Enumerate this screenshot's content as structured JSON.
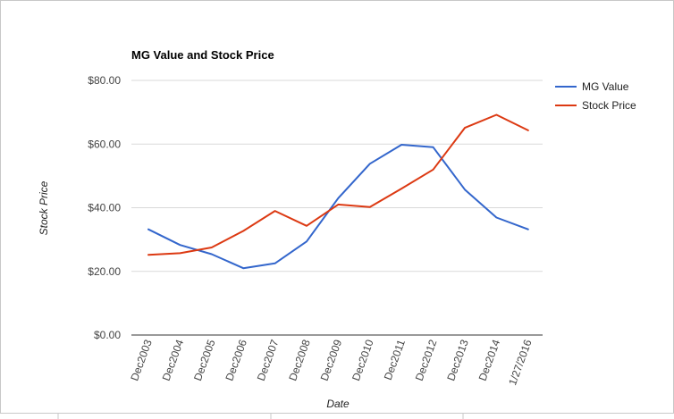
{
  "chart_data": {
    "type": "line",
    "title": "MG Value and Stock Price",
    "xlabel": "Date",
    "ylabel": "Stock Price",
    "categories": [
      "Dec2003",
      "Dec2004",
      "Dec2005",
      "Dec2006",
      "Dec2007",
      "Dec2008",
      "Dec2009",
      "Dec2010",
      "Dec2011",
      "Dec2012",
      "Dec2013",
      "Dec2014",
      "1/27/2016"
    ],
    "series": [
      {
        "name": "MG Value",
        "color": "#3366cc",
        "values": [
          33.2,
          28.3,
          25.4,
          21.0,
          22.5,
          29.4,
          43.0,
          53.8,
          59.8,
          59.0,
          45.7,
          36.9,
          33.2
        ]
      },
      {
        "name": "Stock Price",
        "color": "#dc3912",
        "values": [
          25.2,
          25.7,
          27.5,
          32.7,
          39.0,
          34.3,
          41.0,
          40.2,
          46.0,
          52.0,
          65.1,
          69.2,
          64.3
        ]
      }
    ],
    "ylim": [
      0,
      80
    ],
    "yticks": [
      0,
      20,
      40,
      60,
      80
    ],
    "ytick_labels": [
      "$0.00",
      "$20.00",
      "$40.00",
      "$60.00",
      "$80.00"
    ],
    "grid": true,
    "legend_position": "right"
  }
}
